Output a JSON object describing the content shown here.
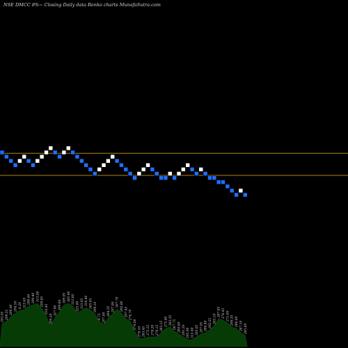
{
  "header": {
    "title": "NSE DMCC 8%~   Closing Daily data  Renko  charts MunafaSutra.com"
  },
  "colors": {
    "background": "#000000",
    "up_brick": "#ffffff",
    "down_brick": "#1f6fff",
    "reference_line": "#b8860b",
    "volume_area": "#063b06",
    "volume_edge": "#1a4d1a",
    "volume_label": "#d0d0d0"
  },
  "chart_data": {
    "type": "renko",
    "title": "NSE DMCC 8%~   Closing Daily data  Renko  charts MunafaSutra.com",
    "brick_step_levels": 1,
    "bricks": [
      {
        "dir": "down",
        "level": 0
      },
      {
        "dir": "down",
        "level": -1
      },
      {
        "dir": "down",
        "level": -2
      },
      {
        "dir": "down",
        "level": -3
      },
      {
        "dir": "up",
        "level": -2
      },
      {
        "dir": "up",
        "level": -1
      },
      {
        "dir": "down",
        "level": -2
      },
      {
        "dir": "down",
        "level": -3
      },
      {
        "dir": "up",
        "level": -2
      },
      {
        "dir": "up",
        "level": -1
      },
      {
        "dir": "up",
        "level": 0
      },
      {
        "dir": "up",
        "level": 1
      },
      {
        "dir": "down",
        "level": 0
      },
      {
        "dir": "down",
        "level": -1
      },
      {
        "dir": "up",
        "level": 0
      },
      {
        "dir": "up",
        "level": 1
      },
      {
        "dir": "down",
        "level": 0
      },
      {
        "dir": "down",
        "level": -1
      },
      {
        "dir": "down",
        "level": -2
      },
      {
        "dir": "down",
        "level": -3
      },
      {
        "dir": "down",
        "level": -4
      },
      {
        "dir": "down",
        "level": -5
      },
      {
        "dir": "up",
        "level": -4
      },
      {
        "dir": "up",
        "level": -3
      },
      {
        "dir": "up",
        "level": -2
      },
      {
        "dir": "up",
        "level": -1
      },
      {
        "dir": "down",
        "level": -2
      },
      {
        "dir": "down",
        "level": -3
      },
      {
        "dir": "down",
        "level": -4
      },
      {
        "dir": "down",
        "level": -5
      },
      {
        "dir": "down",
        "level": -6
      },
      {
        "dir": "up",
        "level": -5
      },
      {
        "dir": "up",
        "level": -4
      },
      {
        "dir": "up",
        "level": -3
      },
      {
        "dir": "down",
        "level": -4
      },
      {
        "dir": "down",
        "level": -5
      },
      {
        "dir": "down",
        "level": -6
      },
      {
        "dir": "down",
        "level": -6
      },
      {
        "dir": "up",
        "level": -5
      },
      {
        "dir": "down",
        "level": -6
      },
      {
        "dir": "up",
        "level": -5
      },
      {
        "dir": "up",
        "level": -4
      },
      {
        "dir": "up",
        "level": -3
      },
      {
        "dir": "down",
        "level": -4
      },
      {
        "dir": "down",
        "level": -5
      },
      {
        "dir": "up",
        "level": -4
      },
      {
        "dir": "down",
        "level": -5
      },
      {
        "dir": "down",
        "level": -6
      },
      {
        "dir": "down",
        "level": -6
      },
      {
        "dir": "down",
        "level": -7
      },
      {
        "dir": "down",
        "level": -7
      },
      {
        "dir": "down",
        "level": -8
      },
      {
        "dir": "down",
        "level": -9
      },
      {
        "dir": "down",
        "level": -10
      },
      {
        "dir": "up",
        "level": -9
      },
      {
        "dir": "down",
        "level": -10
      }
    ],
    "reference_lines": [
      {
        "level": -0.2
      },
      {
        "level": -5.4
      }
    ],
    "volume": {
      "values": [
        33,
        36,
        43,
        48,
        52,
        53,
        58,
        60,
        62,
        55,
        44,
        30,
        42,
        50,
        60,
        62,
        58,
        48,
        52,
        56,
        52,
        47,
        36,
        32,
        41,
        47,
        54,
        48,
        40,
        36,
        22,
        12,
        12,
        14,
        14,
        14,
        20,
        26,
        28,
        22,
        18,
        14,
        10,
        10,
        14,
        18,
        20,
        24,
        30,
        40,
        38,
        34,
        28,
        26,
        20,
        16
      ],
      "labels": [
        "293.05",
        "299.55",
        "296.00",
        "294.50",
        "6.39",
        "313.65",
        "298.40",
        "299.40",
        "313.00",
        "299.85",
        "316.45",
        "309.20",
        "327.00",
        "309.80",
        "309.95",
        "305.40",
        "312.80",
        "325.00",
        "313.45",
        "316.40",
        "303.05",
        "299.10",
        "6.75",
        "297.00",
        "284.35",
        "297.00",
        "307.70",
        "292.00",
        "297.45",
        "276.70",
        "274.00",
        "276.55",
        "283.45",
        "272.55",
        "278.20",
        "276.15",
        "283.15",
        "275.40",
        "283.35",
        "287.75",
        "289.80",
        "291.50",
        "295.90",
        "312.40",
        "303.05",
        "297.05",
        "286.40",
        "292.55",
        "303.10",
        "287.85",
        "276.45",
        "271.80",
        "290.35",
        "286.60",
        "287.10",
        "285.80"
      ]
    }
  }
}
